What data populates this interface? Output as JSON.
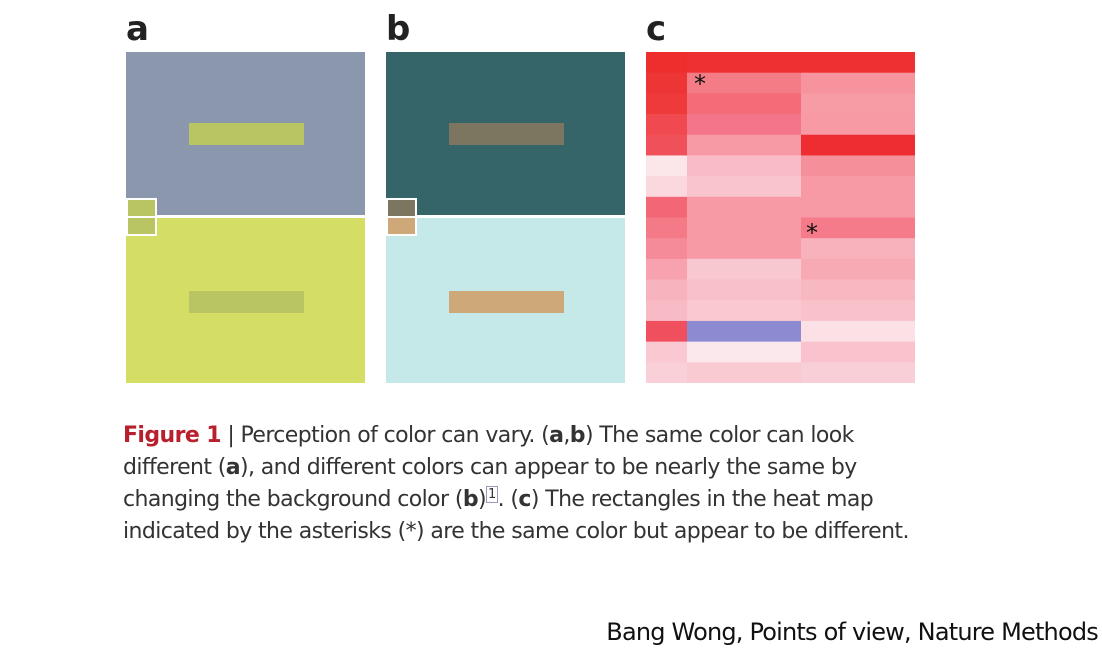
{
  "panels": {
    "a": {
      "letter": "a",
      "top_bg": "#8a97ad",
      "bottom_bg": "#d5de64",
      "top_rect": "#b9c462",
      "bottom_rect": "#b9c462",
      "swatch_top": "#b9c462",
      "swatch_bottom": "#b9c462"
    },
    "b": {
      "letter": "b",
      "top_bg": "#356469",
      "bottom_bg": "#c5e8e9",
      "top_rect": "#7c7560",
      "bottom_rect": "#cfa87a",
      "swatch_top": "#7c7560",
      "swatch_bottom": "#cfa87a"
    },
    "c": {
      "letter": "c",
      "asterisk1": "*",
      "asterisk2": "*"
    }
  },
  "heatmap_colors": [
    [
      "#ee2d2d",
      "#ee3030",
      "#ee3030"
    ],
    [
      "#ee3535",
      "#f47c86",
      "#f7939c"
    ],
    [
      "#ee3a3a",
      "#f46c78",
      "#f79ba4"
    ],
    [
      "#f04a50",
      "#f4748a",
      "#f79aa4"
    ],
    [
      "#f0505a",
      "#f79aa5",
      "#ee2d33"
    ],
    [
      "#fbe7ea",
      "#f9bcc6",
      "#f58f9a"
    ],
    [
      "#fbd8de",
      "#f9c4cc",
      "#f89aa6"
    ],
    [
      "#f26676",
      "#f79aa6",
      "#f79aa6"
    ],
    [
      "#f47a88",
      "#f79aa6",
      "#f57a8a"
    ],
    [
      "#f58a98",
      "#f79aa6",
      "#f8b2bc"
    ],
    [
      "#f7a2ae",
      "#f8c8d0",
      "#f8aab4"
    ],
    [
      "#f8b4be",
      "#f8c0c8",
      "#f8b8c2"
    ],
    [
      "#f8bac4",
      "#f9c8d0",
      "#f9c2ca"
    ],
    [
      "#f0505e",
      "#8c8ad0",
      "#fbe0e6"
    ],
    [
      "#f9c8d0",
      "#fbe8ec",
      "#f9c2cc"
    ],
    [
      "#fad0d8",
      "#f9cad2",
      "#f9cfd7"
    ]
  ],
  "caption": {
    "figure_label": "Figure 1",
    "separator": " | ",
    "text1": "Perception of color can vary. (",
    "a1": "a",
    "comma": ",",
    "b1": "b",
    "text2": ") The same color can look different (",
    "a2": "a",
    "text3": "), and different colors can appear to be nearly the same by changing the background color (",
    "b2": "b",
    "text4": ")",
    "ref": "1",
    "text5": ". (",
    "c1": "c",
    "text6": ") The rectangles in the heat map indicated by the asterisks (*) are the same color but appear to be different."
  },
  "credit": "Bang Wong,  Points of view, Nature Methods"
}
